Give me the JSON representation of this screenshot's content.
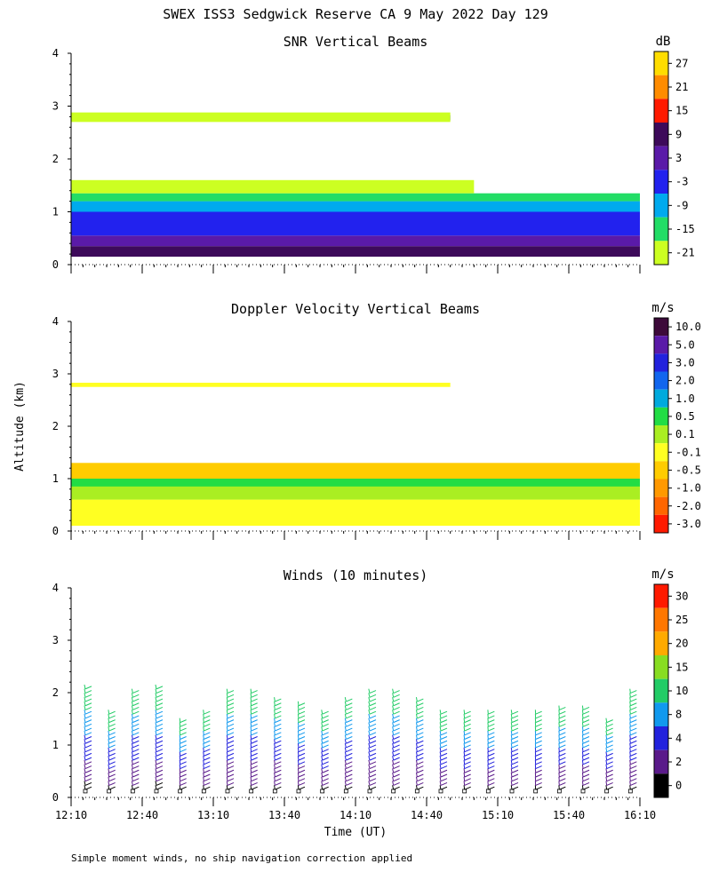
{
  "figure": {
    "title": "SWEX ISS3 Sedgwick Reserve CA   9 May 2022 Day 129",
    "ylabel": "Altitude (km)",
    "xlabel": "Time (UT)",
    "footnote": "Simple moment winds, no ship navigation correction applied"
  },
  "chart_data": [
    {
      "type": "heatmap",
      "title": "SNR Vertical Beams",
      "ylabel": "Altitude (km)",
      "ylim": [
        0,
        4
      ],
      "yticks": [
        "0",
        "1",
        "2",
        "3",
        "4"
      ],
      "xlim": [
        "12:10",
        "16:10"
      ],
      "xticks": [
        "12:10",
        "12:40",
        "13:10",
        "13:40",
        "14:10",
        "14:40",
        "15:10",
        "15:40",
        "16:10"
      ],
      "colorbar": {
        "unit": "dB",
        "labels": [
          "27",
          "21",
          "15",
          "9",
          "3",
          "-3",
          "-9",
          "-15",
          "-21"
        ],
        "colors": [
          "#ffdd00",
          "#ff8c00",
          "#ff1a00",
          "#3d0a5a",
          "#5a1aa8",
          "#2222ee",
          "#00aaee",
          "#22dd66",
          "#ccff22"
        ]
      },
      "layers": [
        {
          "alt_km": [
            0.15,
            0.35
          ],
          "t_end": "16:10",
          "value_db": 9
        },
        {
          "alt_km": [
            0.35,
            0.55
          ],
          "t_end": "16:10",
          "value_db": 3
        },
        {
          "alt_km": [
            0.55,
            1.0
          ],
          "t_end": "16:10",
          "value_db": -3
        },
        {
          "alt_km": [
            1.0,
            1.2
          ],
          "t_end": "16:10",
          "value_db": -9
        },
        {
          "alt_km": [
            1.2,
            1.35
          ],
          "t_end": "16:10",
          "value_db": -15
        },
        {
          "alt_km": [
            1.35,
            1.6
          ],
          "t_end": "15:00",
          "value_db": -21
        },
        {
          "alt_km": [
            2.73,
            2.83
          ],
          "t_end": "14:50",
          "value_db": -3
        },
        {
          "alt_km": [
            2.7,
            2.88
          ],
          "t_end": "14:50",
          "value_db": -21
        }
      ]
    },
    {
      "type": "heatmap",
      "title": "Doppler Velocity Vertical Beams",
      "ylabel": "Altitude (km)",
      "ylim": [
        0,
        4
      ],
      "yticks": [
        "0",
        "1",
        "2",
        "3",
        "4"
      ],
      "xlim": [
        "12:10",
        "16:10"
      ],
      "xticks": [
        "12:10",
        "12:40",
        "13:10",
        "13:40",
        "14:10",
        "14:40",
        "15:10",
        "15:40",
        "16:10"
      ],
      "colorbar": {
        "unit": "m/s",
        "labels": [
          "10.0",
          "5.0",
          "3.0",
          "2.0",
          "1.0",
          "0.5",
          "0.1",
          "-0.1",
          "-0.5",
          "-1.0",
          "-2.0",
          "-3.0"
        ],
        "colors": [
          "#3d0a3a",
          "#5a1aa8",
          "#2222dd",
          "#1166ee",
          "#00aadd",
          "#22dd44",
          "#aaee22",
          "#ffff22",
          "#ffcc00",
          "#ff9900",
          "#ff6600",
          "#ff1a00"
        ]
      },
      "layers": [
        {
          "alt_km": [
            0.1,
            0.6
          ],
          "t_end": "16:10",
          "value_ms": -0.1
        },
        {
          "alt_km": [
            0.6,
            1.0
          ],
          "t_end": "16:10",
          "value_ms": 0.1
        },
        {
          "alt_km": [
            0.85,
            1.1
          ],
          "t_end": "16:10",
          "value_ms": 0.5
        },
        {
          "alt_km": [
            1.0,
            1.3
          ],
          "t_end": "16:10",
          "value_ms": -0.5
        },
        {
          "alt_km": [
            2.75,
            2.83
          ],
          "t_end": "14:50",
          "value_ms": -0.1
        }
      ]
    },
    {
      "type": "barbs",
      "title": "Winds (10 minutes)",
      "ylabel": "Altitude (km)",
      "ylim": [
        0,
        4
      ],
      "yticks": [
        "0",
        "1",
        "2",
        "3",
        "4"
      ],
      "xlim": [
        "12:10",
        "16:10"
      ],
      "xticks": [
        "12:10",
        "12:40",
        "13:10",
        "13:40",
        "14:10",
        "14:40",
        "15:10",
        "15:40",
        "16:10"
      ],
      "colorbar": {
        "unit": "m/s",
        "labels": [
          "30",
          "25",
          "20",
          "15",
          "10",
          "8",
          "4",
          "2",
          "0"
        ],
        "colors": [
          "#ff1a00",
          "#ff7700",
          "#ffaa00",
          "#88dd22",
          "#22cc66",
          "#1199ee",
          "#2222dd",
          "#5a1a8a",
          "#000000"
        ]
      },
      "profile_times": [
        "12:16",
        "12:26",
        "12:36",
        "12:46",
        "12:56",
        "13:06",
        "13:16",
        "13:26",
        "13:36",
        "13:46",
        "13:56",
        "14:06",
        "14:16",
        "14:26",
        "14:36",
        "14:46",
        "14:56",
        "15:06",
        "15:16",
        "15:26",
        "15:36",
        "15:46",
        "15:56",
        "16:06"
      ],
      "profile_top_km": [
        2.1,
        1.6,
        2.0,
        2.1,
        1.5,
        1.6,
        2.0,
        2.0,
        1.9,
        1.8,
        1.6,
        1.9,
        2.0,
        2.0,
        1.9,
        1.6,
        1.6,
        1.6,
        1.6,
        1.6,
        1.7,
        1.7,
        1.5,
        2.0
      ],
      "profile_lean": [
        0.7,
        0.5,
        0.6,
        0.7,
        0.3,
        0.4,
        0.5,
        0.4,
        0.5,
        0.4,
        0.6,
        0.7,
        0.8,
        0.7,
        0.6,
        0.6,
        0.4,
        0.3,
        0.5,
        0.2,
        0.3,
        0.4,
        0.5,
        0.4
      ]
    }
  ]
}
